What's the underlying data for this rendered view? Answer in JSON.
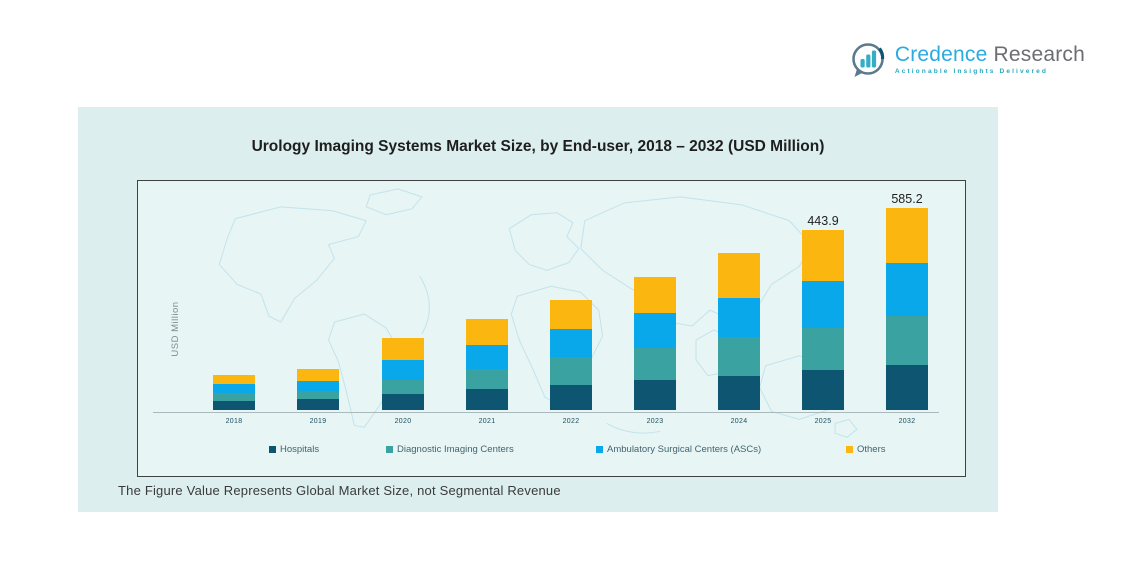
{
  "logo": {
    "brand_primary": "Credence",
    "brand_secondary": " Research",
    "tagline": "Actionable Insights Delivered"
  },
  "chart_data": {
    "type": "stacked-bar",
    "title": "Urology Imaging Systems Market Size, by End-user, 2018 – 2032 (USD Million)",
    "ylabel": "USD Million",
    "note": "The Figure Value Represents Global Market Size, not Segmental Revenue",
    "categories": [
      "2018",
      "2019",
      "2020",
      "2021",
      "2022",
      "2023",
      "2024",
      "2025",
      "2032"
    ],
    "series": [
      {
        "name": "Hospitals",
        "color": "#0d5571",
        "values": [
          22,
          27,
          39,
          52,
          62,
          74,
          84,
          99,
          111
        ]
      },
      {
        "name": "Diagnostic Imaging Centers",
        "color": "#3aa3a1",
        "values": [
          20,
          20,
          35,
          49,
          69,
          79,
          96,
          104,
          121
        ]
      },
      {
        "name": "Ambulatory Surgical Centers (ASCs)",
        "color": "#09a8ea",
        "values": [
          22,
          25,
          49,
          59,
          69,
          86,
          96,
          116,
          131
        ]
      },
      {
        "name": "Others",
        "color": "#fbb60f",
        "values": [
          22,
          30,
          54,
          64,
          72,
          89,
          111,
          125,
          136
        ]
      }
    ],
    "totals": [
      86,
      102,
      177,
      224,
      272,
      328,
      387,
      443.9,
      585.2
    ],
    "total_labels": [
      "",
      "",
      "",
      "",
      "",
      "",
      "",
      "443.9",
      "585.2"
    ],
    "legend_position": "bottom-inside",
    "grid": false,
    "ylim": [
      0,
      620
    ]
  }
}
